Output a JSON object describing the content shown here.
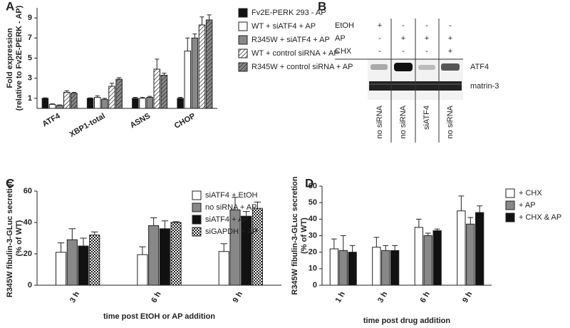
{
  "chart_data": [
    {
      "type": "bar",
      "panel_label": "A",
      "ylabel": [
        "Fold expression",
        "(relative to Fv2E-PERK - AP)"
      ],
      "categories": [
        "ATF4",
        "XBP1-total",
        "ASNS",
        "CHOP"
      ],
      "series": [
        {
          "name": "Fv2E-PERK 293 - AP",
          "color": "#111111",
          "values": [
            1.0,
            1.0,
            1.0,
            1.0
          ],
          "errors": [
            0.05,
            0.05,
            0.1,
            0.1
          ]
        },
        {
          "name": "WT + siATF4 + AP",
          "color": "#ffffff",
          "values": [
            0.4,
            1.1,
            1.0,
            5.7
          ],
          "errors": [
            0.05,
            0.15,
            0.1,
            1.3
          ]
        },
        {
          "name": "R345W + siATF4 + AP",
          "color": "#888888",
          "values": [
            0.3,
            0.9,
            1.1,
            7.0
          ],
          "errors": [
            0.05,
            0.1,
            0.1,
            0.4
          ]
        },
        {
          "name": "WT + control siRNA + AP",
          "color": "#ffffff",
          "pattern": "hatch",
          "values": [
            1.6,
            2.2,
            3.9,
            8.3
          ],
          "errors": [
            0.15,
            0.3,
            1.0,
            0.8
          ]
        },
        {
          "name": "R345W + control siRNA + AP",
          "color": "#888888",
          "pattern": "hatch",
          "values": [
            1.5,
            2.9,
            3.3,
            8.8
          ],
          "errors": [
            0.1,
            0.15,
            0.2,
            0.5
          ]
        }
      ],
      "ylim": [
        0,
        10
      ],
      "yticks": [
        1,
        3,
        5,
        7,
        9
      ]
    },
    {
      "type": "bar",
      "panel_label": "C",
      "ylabel": [
        "R345W fibulin-3-GLuc secretion",
        "(% of WT)"
      ],
      "xlabel": "time post EtOH or AP addition",
      "categories": [
        "3 h",
        "6 h",
        "9 h"
      ],
      "series": [
        {
          "name": "siATF4 + EtOH",
          "color": "#ffffff",
          "values": [
            21,
            19.5,
            21.5
          ],
          "errors": [
            6,
            5,
            5
          ]
        },
        {
          "name": "no siRNA + AP",
          "color": "#888888",
          "values": [
            29,
            38,
            48
          ],
          "errors": [
            7,
            5,
            8
          ]
        },
        {
          "name": "siATF4 + AP",
          "color": "#111111",
          "values": [
            25,
            36,
            44
          ],
          "errors": [
            5,
            5,
            3
          ]
        },
        {
          "name": "siGAPDH + AP",
          "color": "#ffffff",
          "pattern": "check",
          "values": [
            32,
            40,
            49
          ],
          "errors": [
            2,
            0.5,
            4
          ]
        }
      ],
      "ylim": [
        0,
        60
      ],
      "yticks": [
        0,
        20,
        40,
        60
      ]
    },
    {
      "type": "bar",
      "panel_label": "D",
      "ylabel": [
        "R345W fibulin-3-GLuc secretion",
        "(% of WT)"
      ],
      "xlabel": "time post drug addition",
      "categories": [
        "1 h",
        "3 h",
        "6 h",
        "9 h"
      ],
      "series": [
        {
          "name": "+ CHX",
          "color": "#ffffff",
          "values": [
            22,
            23,
            35,
            45
          ],
          "errors": [
            6,
            6,
            5,
            9
          ]
        },
        {
          "name": "+ AP",
          "color": "#888888",
          "values": [
            21,
            21,
            30,
            37
          ],
          "errors": [
            9,
            3,
            1.5,
            4
          ]
        },
        {
          "name": "+ CHX & AP",
          "color": "#111111",
          "values": [
            20,
            21,
            33,
            44
          ],
          "errors": [
            4,
            3,
            1,
            4
          ]
        }
      ],
      "ylim": [
        0,
        60
      ],
      "yticks": [
        0,
        10,
        20,
        30,
        40,
        50,
        60
      ]
    }
  ],
  "blot": {
    "panel_label": "B",
    "conditions": [
      {
        "name": "EtOH",
        "marks": [
          "+",
          "-",
          "-",
          "-"
        ]
      },
      {
        "name": "AP",
        "marks": [
          "-",
          "+",
          "+",
          "+"
        ]
      },
      {
        "name": "CHX",
        "marks": [
          "-",
          "-",
          "-",
          "+"
        ]
      }
    ],
    "bands": [
      "ATF4",
      "matrin-3"
    ],
    "lanes": [
      "no siRNA",
      "no siRNA",
      "siATF4",
      "no siRNA"
    ]
  }
}
